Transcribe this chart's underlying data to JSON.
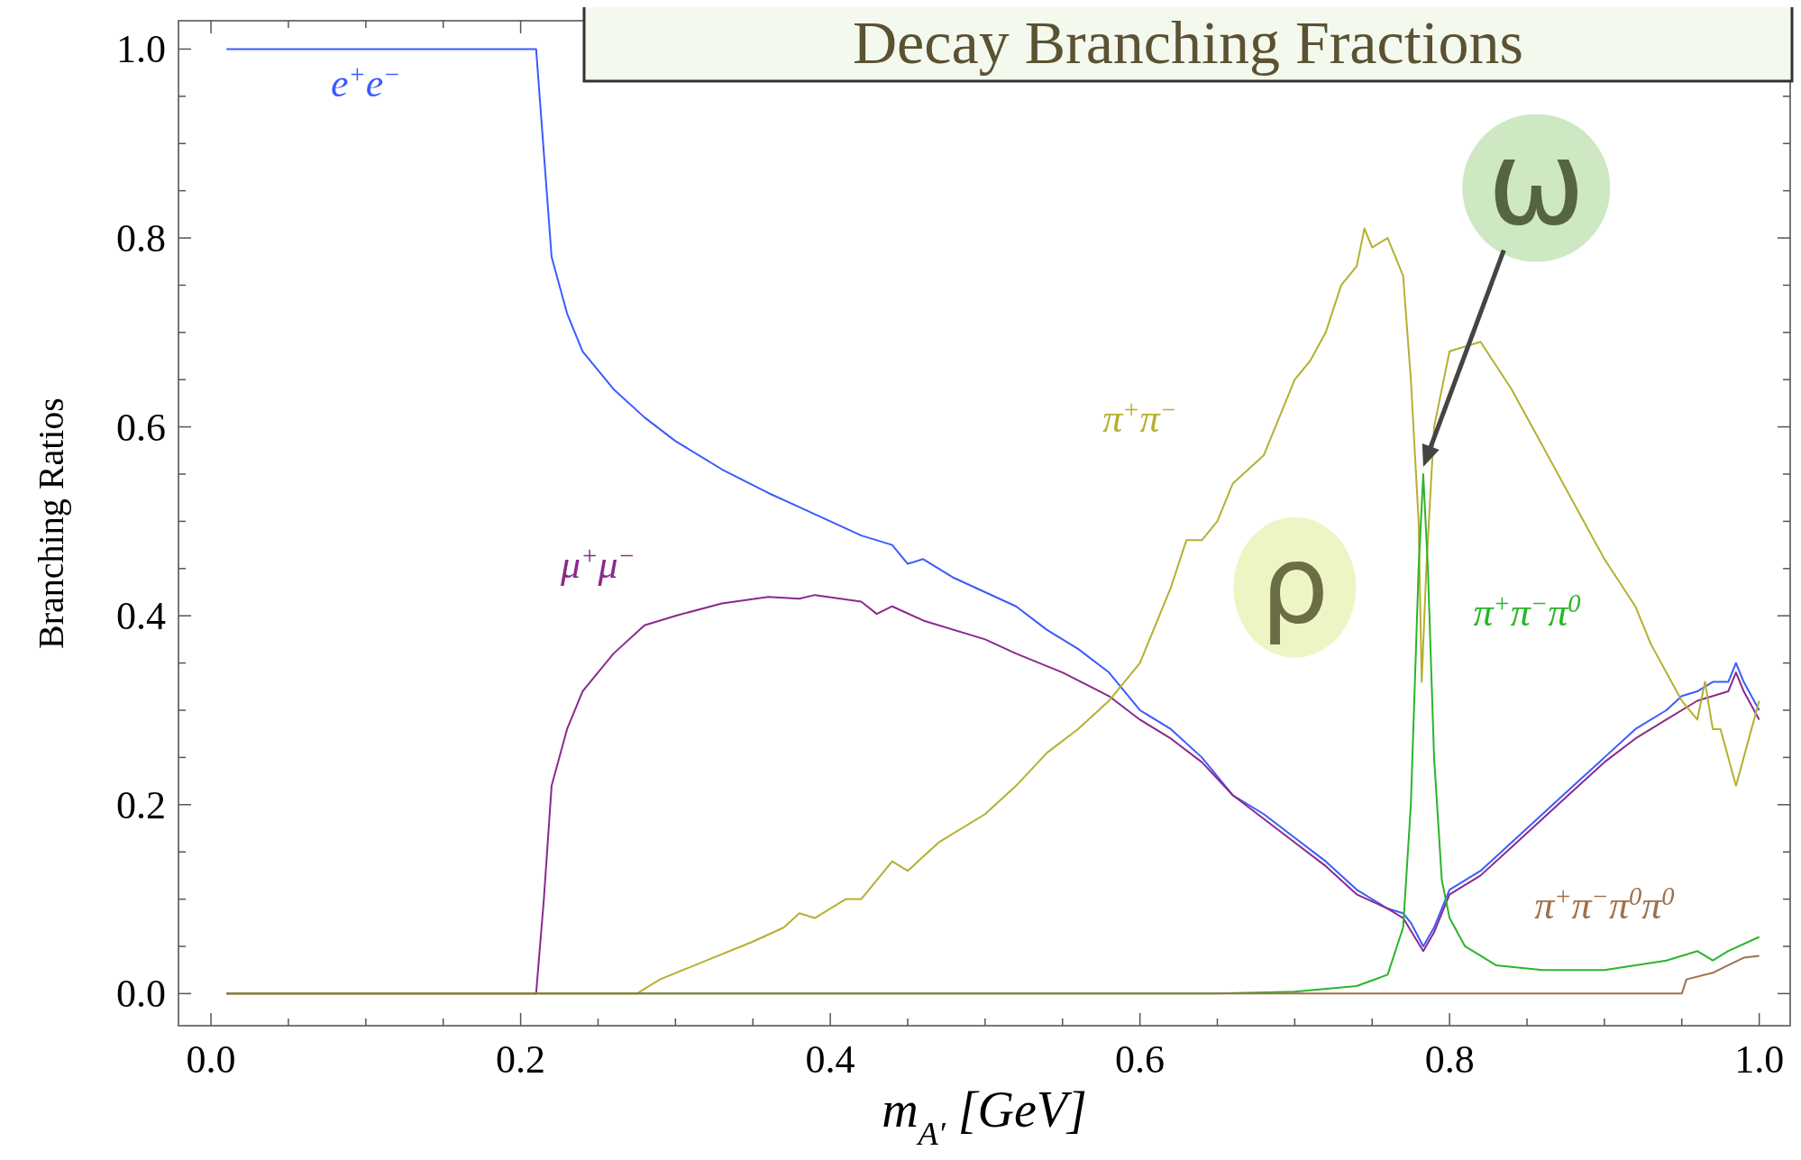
{
  "chart_data": {
    "type": "line",
    "title": "Decay Branching Fractions",
    "xlabel": "m$_{A′}$ [GeV]",
    "ylabel": "Branching Ratios",
    "xlim": [
      -0.021,
      1.02
    ],
    "ylim": [
      -0.034,
      1.03
    ],
    "xticks": [
      {
        "value": 0,
        "label": "0.0"
      },
      {
        "value": 0.05,
        "label": null
      },
      {
        "value": 0.1,
        "label": null
      },
      {
        "value": 0.15,
        "label": null
      },
      {
        "value": 0.2,
        "label": "0.2"
      },
      {
        "value": 0.25,
        "label": null
      },
      {
        "value": 0.3,
        "label": null
      },
      {
        "value": 0.35,
        "label": null
      },
      {
        "value": 0.4,
        "label": "0.4"
      },
      {
        "value": 0.45,
        "label": null
      },
      {
        "value": 0.5,
        "label": null
      },
      {
        "value": 0.55,
        "label": null
      },
      {
        "value": 0.6,
        "label": "0.6"
      },
      {
        "value": 0.65,
        "label": null
      },
      {
        "value": 0.7,
        "label": null
      },
      {
        "value": 0.75,
        "label": null
      },
      {
        "value": 0.8,
        "label": "0.8"
      },
      {
        "value": 0.85,
        "label": null
      },
      {
        "value": 0.9,
        "label": null
      },
      {
        "value": 0.95,
        "label": null
      },
      {
        "value": 1,
        "label": "1.0"
      }
    ],
    "yticks": [
      {
        "value": 0,
        "label": "0.0"
      },
      {
        "value": 0.05,
        "label": null
      },
      {
        "value": 0.1,
        "label": null
      },
      {
        "value": 0.15,
        "label": null
      },
      {
        "value": 0.2,
        "label": "0.2"
      },
      {
        "value": 0.25,
        "label": null
      },
      {
        "value": 0.3,
        "label": null
      },
      {
        "value": 0.35,
        "label": null
      },
      {
        "value": 0.4,
        "label": "0.4"
      },
      {
        "value": 0.45,
        "label": null
      },
      {
        "value": 0.5,
        "label": null
      },
      {
        "value": 0.55,
        "label": null
      },
      {
        "value": 0.6,
        "label": "0.6"
      },
      {
        "value": 0.65,
        "label": null
      },
      {
        "value": 0.7,
        "label": null
      },
      {
        "value": 0.75,
        "label": null
      },
      {
        "value": 0.8,
        "label": "0.8"
      },
      {
        "value": 0.85,
        "label": null
      },
      {
        "value": 0.9,
        "label": null
      },
      {
        "value": 0.95,
        "label": null
      },
      {
        "value": 1,
        "label": "1.0"
      }
    ],
    "grid": false,
    "marker": "none",
    "line_style": "solid",
    "series": [
      {
        "name": "e$^{+}$e$^{−}$",
        "color": "#3b5bff",
        "x": [
          0.01,
          0.21,
          0.22,
          0.23,
          0.24,
          0.26,
          0.28,
          0.3,
          0.33,
          0.36,
          0.38,
          0.4,
          0.42,
          0.44,
          0.45,
          0.46,
          0.48,
          0.5,
          0.52,
          0.54,
          0.56,
          0.58,
          0.6,
          0.62,
          0.64,
          0.66,
          0.68,
          0.7,
          0.72,
          0.74,
          0.76,
          0.77,
          0.775,
          0.783,
          0.79,
          0.8,
          0.82,
          0.84,
          0.86,
          0.88,
          0.9,
          0.92,
          0.94,
          0.95,
          0.96,
          0.97,
          0.98,
          0.985,
          0.99,
          1.0
        ],
        "values": [
          1.0,
          1.0,
          0.78,
          0.72,
          0.68,
          0.64,
          0.61,
          0.585,
          0.555,
          0.53,
          0.515,
          0.5,
          0.485,
          0.475,
          0.455,
          0.46,
          0.44,
          0.425,
          0.41,
          0.385,
          0.365,
          0.34,
          0.3,
          0.28,
          0.25,
          0.21,
          0.19,
          0.165,
          0.14,
          0.11,
          0.09,
          0.085,
          0.075,
          0.05,
          0.07,
          0.11,
          0.13,
          0.16,
          0.19,
          0.22,
          0.25,
          0.28,
          0.3,
          0.315,
          0.32,
          0.33,
          0.33,
          0.35,
          0.33,
          0.3
        ]
      },
      {
        "name": "μ$^{+}$μ$^{−}$",
        "color": "#8b2a8b",
        "x": [
          0.01,
          0.21,
          0.215,
          0.22,
          0.23,
          0.24,
          0.26,
          0.28,
          0.3,
          0.33,
          0.36,
          0.38,
          0.39,
          0.42,
          0.43,
          0.44,
          0.46,
          0.5,
          0.52,
          0.55,
          0.58,
          0.6,
          0.62,
          0.64,
          0.66,
          0.68,
          0.7,
          0.72,
          0.74,
          0.76,
          0.77,
          0.783,
          0.79,
          0.8,
          0.82,
          0.84,
          0.86,
          0.88,
          0.9,
          0.92,
          0.94,
          0.96,
          0.98,
          0.985,
          0.99,
          1.0
        ],
        "values": [
          0,
          0,
          0.1,
          0.22,
          0.28,
          0.32,
          0.36,
          0.39,
          0.4,
          0.413,
          0.42,
          0.418,
          0.422,
          0.415,
          0.402,
          0.41,
          0.395,
          0.375,
          0.36,
          0.34,
          0.315,
          0.29,
          0.27,
          0.245,
          0.21,
          0.185,
          0.16,
          0.135,
          0.105,
          0.09,
          0.08,
          0.045,
          0.065,
          0.105,
          0.125,
          0.155,
          0.185,
          0.215,
          0.245,
          0.27,
          0.29,
          0.31,
          0.32,
          0.34,
          0.32,
          0.29
        ]
      },
      {
        "name": "π$^{+}$π$^{−}$",
        "color": "#b5b030",
        "x": [
          0.01,
          0.275,
          0.29,
          0.32,
          0.35,
          0.37,
          0.38,
          0.39,
          0.41,
          0.42,
          0.44,
          0.45,
          0.47,
          0.5,
          0.52,
          0.54,
          0.56,
          0.58,
          0.6,
          0.62,
          0.63,
          0.64,
          0.65,
          0.66,
          0.68,
          0.69,
          0.7,
          0.71,
          0.72,
          0.73,
          0.74,
          0.745,
          0.75,
          0.76,
          0.77,
          0.775,
          0.78,
          0.782,
          0.785,
          0.79,
          0.8,
          0.82,
          0.84,
          0.86,
          0.88,
          0.9,
          0.92,
          0.93,
          0.94,
          0.95,
          0.96,
          0.965,
          0.97,
          0.975,
          0.985,
          0.99,
          1.0
        ],
        "values": [
          0,
          0,
          0.015,
          0.035,
          0.055,
          0.07,
          0.085,
          0.08,
          0.1,
          0.1,
          0.14,
          0.13,
          0.16,
          0.19,
          0.22,
          0.255,
          0.28,
          0.31,
          0.35,
          0.43,
          0.48,
          0.48,
          0.5,
          0.54,
          0.57,
          0.61,
          0.65,
          0.67,
          0.7,
          0.75,
          0.77,
          0.81,
          0.79,
          0.8,
          0.76,
          0.65,
          0.5,
          0.33,
          0.45,
          0.6,
          0.68,
          0.69,
          0.64,
          0.58,
          0.52,
          0.46,
          0.41,
          0.37,
          0.34,
          0.31,
          0.29,
          0.33,
          0.28,
          0.28,
          0.22,
          0.25,
          0.31
        ]
      },
      {
        "name": "π$^{+}$π$^{−}$π$^{0}$",
        "color": "#2ab52a",
        "x": [
          0.01,
          0.65,
          0.7,
          0.74,
          0.76,
          0.77,
          0.775,
          0.78,
          0.783,
          0.786,
          0.79,
          0.795,
          0.8,
          0.81,
          0.83,
          0.86,
          0.9,
          0.94,
          0.96,
          0.97,
          0.98,
          1.0
        ],
        "values": [
          0,
          0,
          0.002,
          0.008,
          0.02,
          0.07,
          0.2,
          0.45,
          0.55,
          0.45,
          0.25,
          0.12,
          0.08,
          0.05,
          0.03,
          0.025,
          0.025,
          0.035,
          0.045,
          0.035,
          0.045,
          0.06
        ]
      },
      {
        "name": "π$^{+}$π$^{−}$π$^{0}$π$^{0}$",
        "color": "#a0704a",
        "x": [
          0.01,
          0.95,
          0.953,
          0.97,
          0.98,
          0.99,
          1.0
        ],
        "values": [
          0,
          0,
          0.015,
          0.022,
          0.03,
          0.038,
          0.04
        ]
      }
    ],
    "annotations": [
      "ρ",
      {
        "text": "ω",
        "x": 0.783,
        "y": 0.55
      }
    ]
  }
}
